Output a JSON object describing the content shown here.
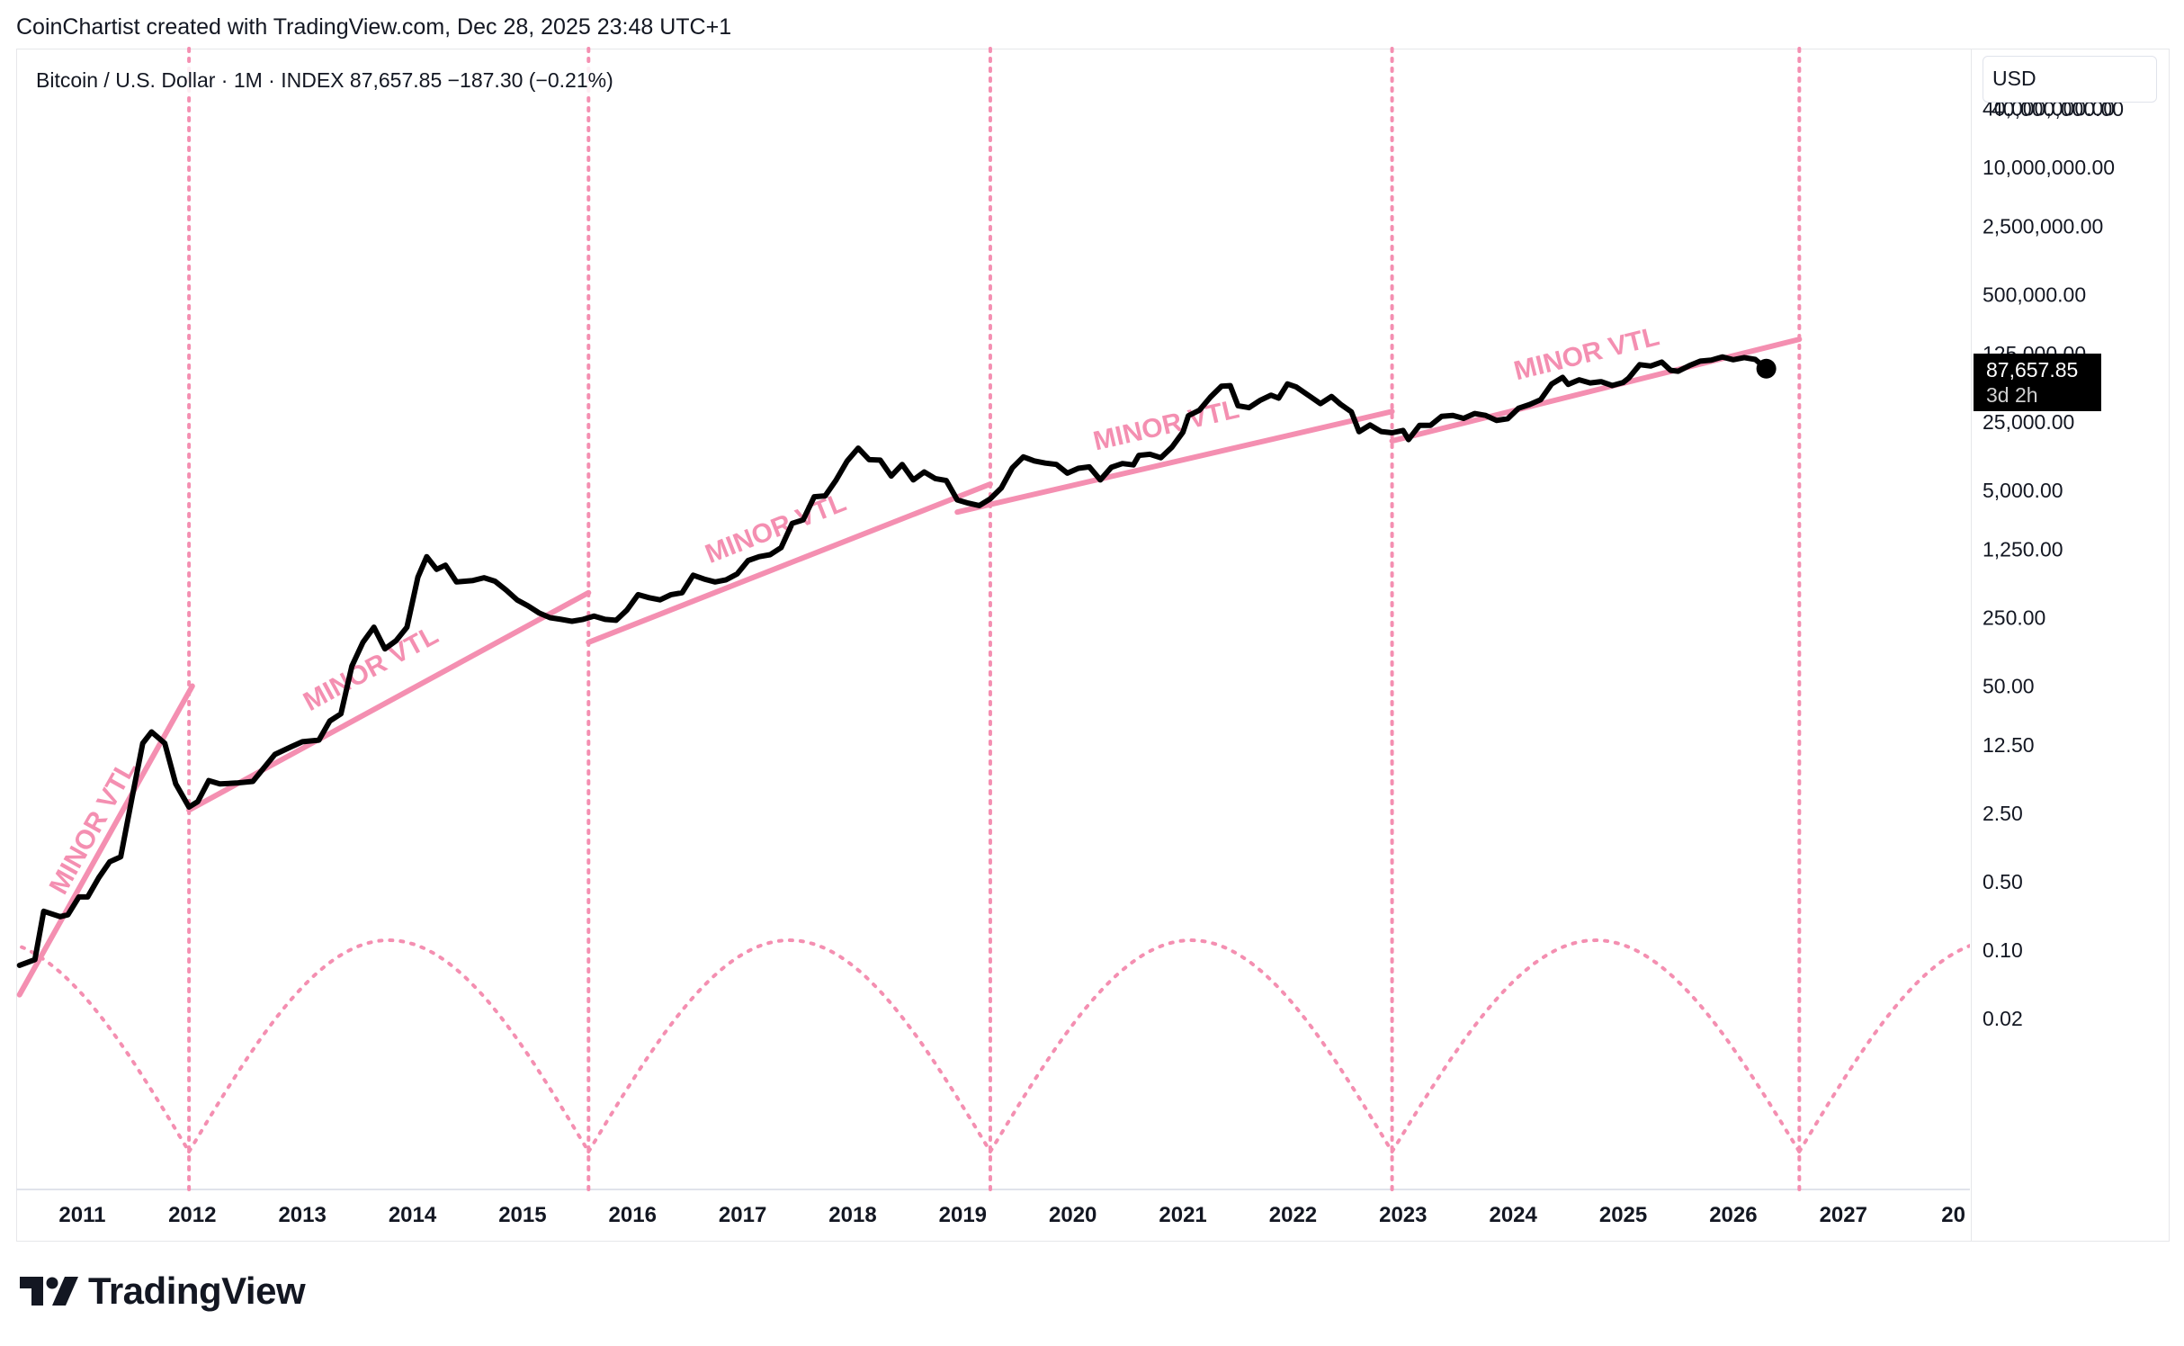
{
  "header": {
    "caption": "CoinChartist created with TradingView.com, Dec 28, 2025 23:48 UTC+1"
  },
  "legend": {
    "text": "Bitcoin / U.S. Dollar · 1M · INDEX  87,657.85  −187.30 (−0.21%)"
  },
  "currency_button": {
    "label": "USD"
  },
  "last_price": {
    "value": "87,657.85",
    "countdown": "3d 2h"
  },
  "branding": {
    "logo_text": "TradingView"
  },
  "colors": {
    "line": "#000000",
    "accent": "#f48fb1",
    "grid": "#e6e7ea"
  },
  "chart_data": {
    "type": "line",
    "scale": "log",
    "title": "Bitcoin / U.S. Dollar · 1M · INDEX",
    "xlabel": "",
    "ylabel": "USD",
    "x_ticks": [
      "2011",
      "2012",
      "2013",
      "2014",
      "2015",
      "2016",
      "2017",
      "2018",
      "2019",
      "2020",
      "2021",
      "2022",
      "2023",
      "2024",
      "2025",
      "2026",
      "2027",
      "20"
    ],
    "y_ticks": [
      {
        "label": "40,000,000.00",
        "value": 40000000
      },
      {
        "label": "10,000,000.00",
        "value": 10000000
      },
      {
        "label": "2,500,000.00",
        "value": 2500000
      },
      {
        "label": "500,000.00",
        "value": 500000
      },
      {
        "label": "125,000.00",
        "value": 125000
      },
      {
        "label": "25,000.00",
        "value": 25000
      },
      {
        "label": "5,000.00",
        "value": 5000
      },
      {
        "label": "1,250.00",
        "value": 1250
      },
      {
        "label": "250.00",
        "value": 250
      },
      {
        "label": "50.00",
        "value": 50
      },
      {
        "label": "12.50",
        "value": 12.5
      },
      {
        "label": "2.50",
        "value": 2.5
      },
      {
        "label": "0.50",
        "value": 0.5
      },
      {
        "label": "0.10",
        "value": 0.1
      },
      {
        "label": "0.02",
        "value": 0.02
      }
    ],
    "x_range": [
      2010.35,
      2028.1
    ],
    "series": [
      {
        "name": "BTCUSD",
        "points": [
          [
            2010.38,
            0.07
          ],
          [
            2010.52,
            0.08
          ],
          [
            2010.6,
            0.25
          ],
          [
            2010.75,
            0.22
          ],
          [
            2010.82,
            0.23
          ],
          [
            2010.92,
            0.35
          ],
          [
            2011.0,
            0.35
          ],
          [
            2011.1,
            0.55
          ],
          [
            2011.2,
            0.8
          ],
          [
            2011.3,
            0.9
          ],
          [
            2011.4,
            3.5
          ],
          [
            2011.5,
            13.0
          ],
          [
            2011.58,
            17.0
          ],
          [
            2011.7,
            13.0
          ],
          [
            2011.8,
            5.0
          ],
          [
            2011.92,
            2.9
          ],
          [
            2012.0,
            3.3
          ],
          [
            2012.1,
            5.4
          ],
          [
            2012.2,
            5.0
          ],
          [
            2012.35,
            5.1
          ],
          [
            2012.5,
            5.3
          ],
          [
            2012.7,
            10.0
          ],
          [
            2012.85,
            12.0
          ],
          [
            2012.95,
            13.5
          ],
          [
            2013.1,
            14.0
          ],
          [
            2013.2,
            22.0
          ],
          [
            2013.3,
            26.0
          ],
          [
            2013.4,
            80.0
          ],
          [
            2013.5,
            140.0
          ],
          [
            2013.6,
            200.0
          ],
          [
            2013.7,
            120.0
          ],
          [
            2013.8,
            145.0
          ],
          [
            2013.9,
            200.0
          ],
          [
            2014.0,
            650.0
          ],
          [
            2014.08,
            1050.0
          ],
          [
            2014.17,
            780.0
          ],
          [
            2014.25,
            860.0
          ],
          [
            2014.35,
            580.0
          ],
          [
            2014.5,
            600.0
          ],
          [
            2014.6,
            640.0
          ],
          [
            2014.7,
            590.0
          ],
          [
            2014.8,
            480.0
          ],
          [
            2014.9,
            380.0
          ],
          [
            2015.0,
            330.0
          ],
          [
            2015.1,
            280.0
          ],
          [
            2015.2,
            250.0
          ],
          [
            2015.3,
            240.0
          ],
          [
            2015.4,
            230.0
          ],
          [
            2015.5,
            240.0
          ],
          [
            2015.6,
            260.0
          ],
          [
            2015.7,
            240.0
          ],
          [
            2015.8,
            235.0
          ],
          [
            2015.9,
            300.0
          ],
          [
            2016.0,
            430.0
          ],
          [
            2016.1,
            400.0
          ],
          [
            2016.2,
            380.0
          ],
          [
            2016.3,
            430.0
          ],
          [
            2016.4,
            450.0
          ],
          [
            2016.5,
            680.0
          ],
          [
            2016.6,
            620.0
          ],
          [
            2016.7,
            580.0
          ],
          [
            2016.8,
            610.0
          ],
          [
            2016.9,
            700.0
          ],
          [
            2017.0,
            960.0
          ],
          [
            2017.1,
            1050.0
          ],
          [
            2017.2,
            1100.0
          ],
          [
            2017.3,
            1300.0
          ],
          [
            2017.4,
            2300.0
          ],
          [
            2017.5,
            2500.0
          ],
          [
            2017.6,
            4300.0
          ],
          [
            2017.7,
            4400.0
          ],
          [
            2017.8,
            6400.0
          ],
          [
            2017.9,
            10000.0
          ],
          [
            2018.0,
            13500.0
          ],
          [
            2018.1,
            10300.0
          ],
          [
            2018.2,
            10200.0
          ],
          [
            2018.3,
            7000.0
          ],
          [
            2018.4,
            9200.0
          ],
          [
            2018.5,
            6400.0
          ],
          [
            2018.6,
            7700.0
          ],
          [
            2018.7,
            6600.0
          ],
          [
            2018.8,
            6300.0
          ],
          [
            2018.9,
            4000.0
          ],
          [
            2019.0,
            3700.0
          ],
          [
            2019.1,
            3500.0
          ],
          [
            2019.2,
            4100.0
          ],
          [
            2019.3,
            5300.0
          ],
          [
            2019.4,
            8500.0
          ],
          [
            2019.5,
            11000.0
          ],
          [
            2019.6,
            10000.0
          ],
          [
            2019.7,
            9500.0
          ],
          [
            2019.8,
            9200.0
          ],
          [
            2019.9,
            7500.0
          ],
          [
            2020.0,
            8400.0
          ],
          [
            2020.1,
            8700.0
          ],
          [
            2020.2,
            6400.0
          ],
          [
            2020.3,
            8600.0
          ],
          [
            2020.4,
            9400.0
          ],
          [
            2020.5,
            9100.0
          ],
          [
            2020.55,
            11400.0
          ],
          [
            2020.65,
            11700.0
          ],
          [
            2020.75,
            10800.0
          ],
          [
            2020.85,
            13800.0
          ],
          [
            2020.95,
            19700.0
          ],
          [
            2021.0,
            29000.0
          ],
          [
            2021.1,
            33000.0
          ],
          [
            2021.2,
            45000.0
          ],
          [
            2021.3,
            58000.0
          ],
          [
            2021.38,
            58800.0
          ],
          [
            2021.45,
            36700.0
          ],
          [
            2021.55,
            35000.0
          ],
          [
            2021.65,
            41500.0
          ],
          [
            2021.75,
            47000.0
          ],
          [
            2021.82,
            43800.0
          ],
          [
            2021.9,
            61300.0
          ],
          [
            2021.98,
            57000.0
          ],
          [
            2022.1,
            46000.0
          ],
          [
            2022.2,
            38500.0
          ],
          [
            2022.3,
            45500.0
          ],
          [
            2022.38,
            38000.0
          ],
          [
            2022.48,
            31800.0
          ],
          [
            2022.55,
            19900.0
          ],
          [
            2022.65,
            23300.0
          ],
          [
            2022.75,
            20000.0
          ],
          [
            2022.85,
            19400.0
          ],
          [
            2022.95,
            20500.0
          ],
          [
            2023.0,
            16500.0
          ],
          [
            2023.1,
            23100.0
          ],
          [
            2023.2,
            23100.0
          ],
          [
            2023.3,
            28500.0
          ],
          [
            2023.4,
            29200.0
          ],
          [
            2023.5,
            27200.0
          ],
          [
            2023.6,
            30500.0
          ],
          [
            2023.7,
            29200.0
          ],
          [
            2023.8,
            25900.0
          ],
          [
            2023.9,
            27000.0
          ],
          [
            2024.0,
            34600.0
          ],
          [
            2024.1,
            37700.0
          ],
          [
            2024.2,
            42300.0
          ],
          [
            2024.3,
            61100.0
          ],
          [
            2024.4,
            71300.0
          ],
          [
            2024.45,
            60600.0
          ],
          [
            2024.55,
            67500.0
          ],
          [
            2024.65,
            62700.0
          ],
          [
            2024.75,
            64600.0
          ],
          [
            2024.85,
            58900.0
          ],
          [
            2024.95,
            63300.0
          ],
          [
            2025.0,
            70200.0
          ],
          [
            2025.1,
            96400.0
          ],
          [
            2025.2,
            93400.0
          ],
          [
            2025.3,
            102400.0
          ],
          [
            2025.38,
            84300.0
          ],
          [
            2025.45,
            82500.0
          ],
          [
            2025.55,
            94200.0
          ],
          [
            2025.65,
            104600.0
          ],
          [
            2025.75,
            107100.0
          ],
          [
            2025.85,
            115700.0
          ],
          [
            2025.95,
            108200.0
          ],
          [
            2026.05,
            114000.0
          ],
          [
            2026.15,
            109000.0
          ],
          [
            2026.25,
            87657.85
          ]
        ]
      }
    ],
    "vtl_lines": [
      {
        "label": "MINOR VTL",
        "from": [
          2010.38,
          0.035
        ],
        "to": [
          2011.95,
          50.0
        ]
      },
      {
        "label": "MINOR VTL",
        "from": [
          2011.92,
          2.7
        ],
        "to": [
          2015.55,
          450.0
        ]
      },
      {
        "label": "MINOR VTL",
        "from": [
          2015.55,
          140.0
        ],
        "to": [
          2019.2,
          5800.0
        ]
      },
      {
        "label": "MINOR VTL",
        "from": [
          2018.9,
          3000.0
        ],
        "to": [
          2022.85,
          32000.0
        ]
      },
      {
        "label": "MINOR VTL",
        "from": [
          2022.85,
          16000.0
        ],
        "to": [
          2026.55,
          175000.0
        ]
      }
    ],
    "cycle_markers": [
      2011.92,
      2015.55,
      2019.2,
      2022.85,
      2026.55
    ],
    "annotations": [
      "MINOR VTL",
      "MINOR VTL",
      "MINOR VTL",
      "MINOR VTL",
      "MINOR VTL"
    ]
  }
}
